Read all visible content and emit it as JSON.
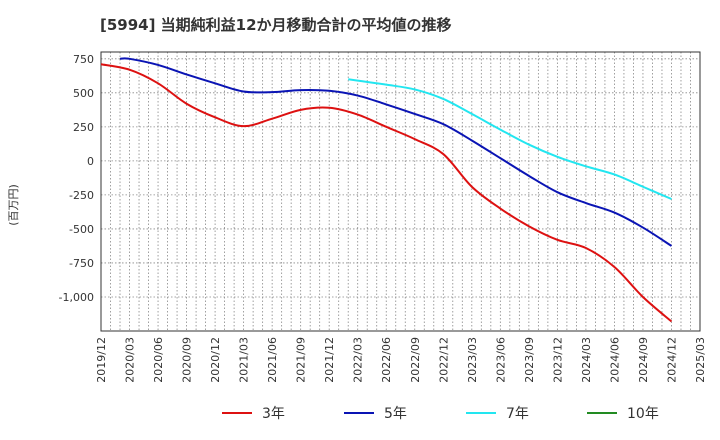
{
  "chart_data": {
    "type": "line",
    "title": "[5994]  当期純利益12か月移動合計の平均値の推移",
    "ylabel": "(百万円)",
    "xlabel": "",
    "ylim": [
      -1250,
      800
    ],
    "yticks": [
      750,
      500,
      250,
      0,
      -250,
      -500,
      -750,
      -1000
    ],
    "ytick_labels": [
      "750",
      "500",
      "250",
      "0",
      "-250",
      "-500",
      "-750",
      "-1,000"
    ],
    "xlim": [
      "2019-12",
      "2025-03"
    ],
    "xticks": [
      "2019/12",
      "2020/03",
      "2020/06",
      "2020/09",
      "2020/12",
      "2021/03",
      "2021/06",
      "2021/09",
      "2021/12",
      "2022/03",
      "2022/06",
      "2022/09",
      "2022/12",
      "2023/03",
      "2023/06",
      "2023/09",
      "2023/12",
      "2024/03",
      "2024/06",
      "2024/09",
      "2024/12",
      "2025/03"
    ],
    "grid": true,
    "legend_position": "bottom",
    "series": [
      {
        "name": "3年",
        "color": "#dd1111",
        "x": [
          "2019-12",
          "2020-03",
          "2020-06",
          "2020-09",
          "2020-12",
          "2021-03",
          "2021-06",
          "2021-09",
          "2021-12",
          "2022-03",
          "2022-06",
          "2022-09",
          "2022-12",
          "2023-03",
          "2023-06",
          "2023-09",
          "2023-12",
          "2024-03",
          "2024-06",
          "2024-09",
          "2024-12"
        ],
        "values": [
          710,
          670,
          570,
          420,
          320,
          255,
          310,
          375,
          390,
          340,
          250,
          160,
          50,
          -190,
          -350,
          -480,
          -580,
          -640,
          -780,
          -1000,
          -1180
        ]
      },
      {
        "name": "5年",
        "color": "#0a14b4",
        "x": [
          "2020-02",
          "2020-03",
          "2020-06",
          "2020-09",
          "2020-12",
          "2021-03",
          "2021-06",
          "2021-09",
          "2021-12",
          "2022-03",
          "2022-06",
          "2022-09",
          "2022-12",
          "2023-03",
          "2023-06",
          "2023-09",
          "2023-12",
          "2024-03",
          "2024-06",
          "2024-09",
          "2024-12"
        ],
        "values": [
          750,
          750,
          705,
          635,
          570,
          510,
          505,
          520,
          515,
          480,
          415,
          345,
          270,
          150,
          20,
          -110,
          -230,
          -310,
          -380,
          -490,
          -625
        ]
      },
      {
        "name": "7年",
        "color": "#22e6f0",
        "x": [
          "2022-02",
          "2022-03",
          "2022-06",
          "2022-09",
          "2022-12",
          "2023-03",
          "2023-06",
          "2023-09",
          "2023-12",
          "2024-03",
          "2024-06",
          "2024-09",
          "2024-12"
        ],
        "values": [
          600,
          590,
          560,
          525,
          455,
          345,
          230,
          120,
          30,
          -40,
          -100,
          -190,
          -280
        ]
      },
      {
        "name": "10年",
        "color": "#228b22",
        "x": [],
        "values": []
      }
    ]
  }
}
